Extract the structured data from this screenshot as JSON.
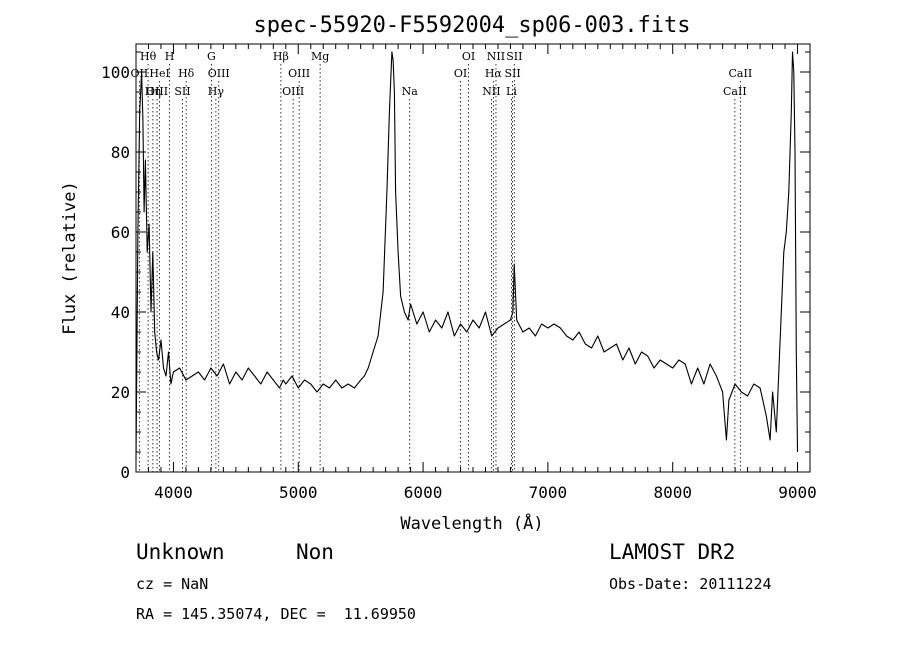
{
  "chart_data": {
    "type": "line",
    "title": "spec-55920-F5592004_sp06-003.fits",
    "xlabel": "Wavelength (Å)",
    "ylabel": "Flux (relative)",
    "xlim": [
      3700,
      9100
    ],
    "ylim": [
      0,
      107
    ],
    "x_ticks": [
      4000,
      5000,
      6000,
      7000,
      8000,
      9000
    ],
    "y_ticks": [
      0,
      20,
      40,
      60,
      80,
      100
    ],
    "grid": false,
    "series": [
      {
        "x": [
          3700,
          3715,
          3730,
          3745,
          3755,
          3765,
          3775,
          3790,
          3805,
          3820,
          3835,
          3850,
          3865,
          3880,
          3900,
          3920,
          3940,
          3960,
          3980,
          4000,
          4050,
          4100,
          4150,
          4200,
          4250,
          4300,
          4350,
          4400,
          4450,
          4500,
          4550,
          4600,
          4650,
          4700,
          4750,
          4800,
          4850,
          4880,
          4900,
          4950,
          5000,
          5050,
          5100,
          5150,
          5200,
          5250,
          5300,
          5350,
          5400,
          5450,
          5500,
          5530,
          5560,
          5600,
          5640,
          5680,
          5710,
          5730,
          5750,
          5760,
          5770,
          5780,
          5800,
          5820,
          5850,
          5880,
          5900,
          5950,
          6000,
          6050,
          6100,
          6150,
          6200,
          6250,
          6300,
          6350,
          6400,
          6450,
          6500,
          6550,
          6600,
          6650,
          6700,
          6720,
          6730,
          6750,
          6800,
          6850,
          6900,
          6950,
          7000,
          7050,
          7100,
          7150,
          7200,
          7250,
          7300,
          7350,
          7400,
          7450,
          7500,
          7550,
          7600,
          7650,
          7700,
          7750,
          7800,
          7850,
          7900,
          7950,
          8000,
          8050,
          8100,
          8150,
          8200,
          8250,
          8300,
          8350,
          8400,
          8430,
          8450,
          8500,
          8550,
          8600,
          8650,
          8700,
          8750,
          8780,
          8800,
          8830,
          8850,
          8870,
          8890,
          8910,
          8930,
          8950,
          8960,
          8970,
          8980,
          8990,
          9000
        ],
        "y": [
          3,
          60,
          90,
          100,
          88,
          65,
          78,
          55,
          62,
          40,
          55,
          35,
          30,
          28,
          33,
          26,
          24,
          30,
          22,
          25,
          26,
          23,
          24,
          25,
          23,
          26,
          24,
          27,
          22,
          25,
          23,
          26,
          24,
          22,
          25,
          23,
          21,
          23,
          22,
          24,
          21,
          23,
          22,
          20,
          22,
          21,
          23,
          21,
          22,
          21,
          23,
          24,
          26,
          30,
          34,
          45,
          70,
          90,
          105,
          103,
          95,
          70,
          55,
          44,
          40,
          38,
          42,
          37,
          40,
          35,
          38,
          36,
          40,
          34,
          37,
          35,
          38,
          36,
          40,
          34,
          36,
          37,
          38,
          40,
          52,
          38,
          35,
          36,
          34,
          37,
          36,
          37,
          36,
          34,
          33,
          35,
          32,
          31,
          34,
          30,
          31,
          32,
          28,
          31,
          27,
          30,
          29,
          26,
          28,
          27,
          26,
          28,
          27,
          22,
          26,
          22,
          27,
          24,
          20,
          8,
          18,
          22,
          20,
          19,
          22,
          21,
          14,
          8,
          20,
          10,
          25,
          40,
          55,
          60,
          70,
          90,
          105,
          100,
          80,
          30,
          5
        ],
        "color": "#000000"
      }
    ],
    "line_markers": [
      {
        "label": "Hθ",
        "x": 3797,
        "row": 1
      },
      {
        "label": "OII",
        "x": 3727,
        "row": 2
      },
      {
        "label": "HeI",
        "x": 3889,
        "row": 2
      },
      {
        "label": "Hη",
        "x": 3835,
        "row": 3
      },
      {
        "label": "OIII",
        "x": 3869,
        "row": 3
      },
      {
        "label": "H",
        "x": 3969,
        "row": 1
      },
      {
        "label": "Hδ",
        "x": 4102,
        "row": 2
      },
      {
        "label": "SII",
        "x": 4072,
        "row": 3
      },
      {
        "label": "G",
        "x": 4304,
        "row": 1
      },
      {
        "label": "OIII",
        "x": 4363,
        "row": 2
      },
      {
        "label": "Hγ",
        "x": 4340,
        "row": 3
      },
      {
        "label": "Hβ",
        "x": 4861,
        "row": 1
      },
      {
        "label": "OIII",
        "x": 5007,
        "row": 2
      },
      {
        "label": "OIII",
        "x": 4959,
        "row": 3
      },
      {
        "label": "Mg",
        "x": 5175,
        "row": 1
      },
      {
        "label": "Na",
        "x": 5893,
        "row": 3
      },
      {
        "label": "OI",
        "x": 6364,
        "row": 1
      },
      {
        "label": "OI",
        "x": 6300,
        "row": 2
      },
      {
        "label": "NII",
        "x": 6584,
        "row": 1
      },
      {
        "label": "SII",
        "x": 6731,
        "row": 1
      },
      {
        "label": "Hα",
        "x": 6563,
        "row": 2
      },
      {
        "label": "SII",
        "x": 6717,
        "row": 2
      },
      {
        "label": "NII",
        "x": 6548,
        "row": 3
      },
      {
        "label": "Li",
        "x": 6708,
        "row": 3
      },
      {
        "label": "CaII",
        "x": 8542,
        "row": 2
      },
      {
        "label": "CaII",
        "x": 8498,
        "row": 3
      }
    ]
  },
  "info": {
    "class": "Unknown",
    "subclass": "Non",
    "survey": "LAMOST DR2",
    "cz": "cz = NaN",
    "obs_date": "Obs-Date: 20111224",
    "coords": "RA = 145.35074, DEC =  11.69950"
  }
}
